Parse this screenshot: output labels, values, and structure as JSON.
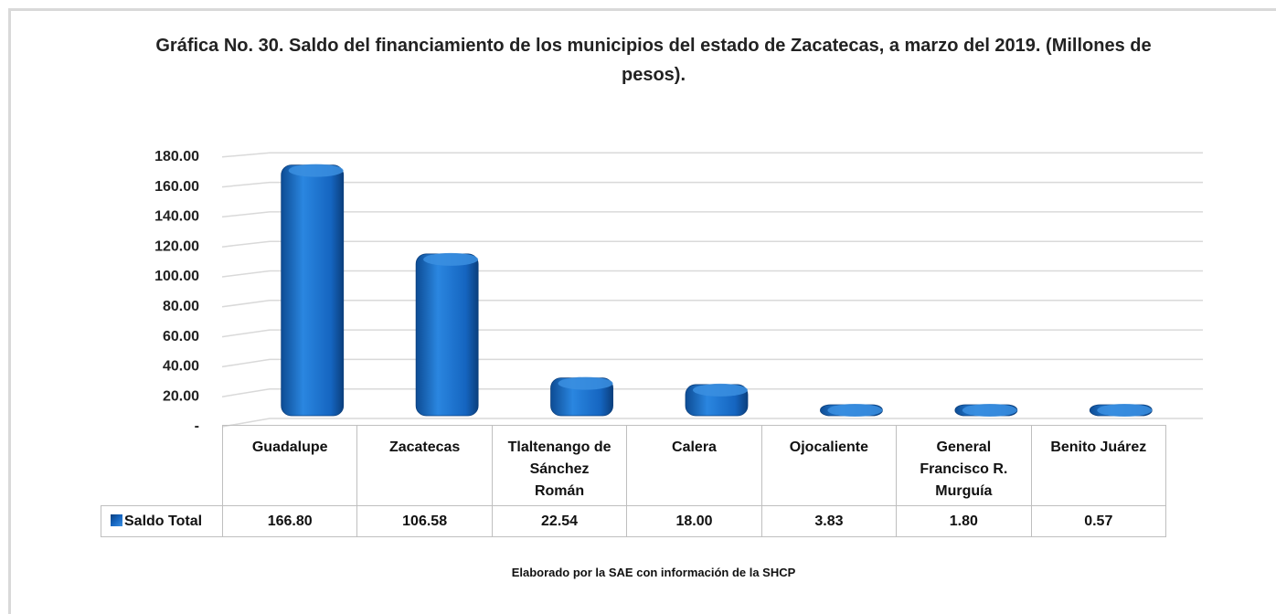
{
  "chart_data": {
    "type": "bar",
    "title": "Gráfica No. 30. Saldo del financiamiento de los municipios del estado de  Zacatecas, a marzo del 2019. (Millones de pesos).",
    "categories": [
      "Guadalupe",
      "Zacatecas",
      "Tlaltenango de Sánchez Román",
      "Calera",
      "Ojocaliente",
      "General Francisco R. Murguía",
      "Benito Juárez"
    ],
    "series": [
      {
        "name": "Saldo Total",
        "color": "#1565c0",
        "values": [
          166.8,
          106.58,
          22.54,
          18,
          3.83,
          1.8,
          0.57
        ],
        "value_labels": [
          "166.80",
          "106.58",
          "22.54",
          "18.00",
          "3.83",
          "1.80",
          "0.57"
        ]
      }
    ],
    "ylim": [
      0,
      200
    ],
    "yticks": [
      {
        "value": 0,
        "label": "-"
      },
      {
        "value": 20,
        "label": "20.00"
      },
      {
        "value": 40,
        "label": "40.00"
      },
      {
        "value": 60,
        "label": "60.00"
      },
      {
        "value": 80,
        "label": "80.00"
      },
      {
        "value": 100,
        "label": "100.00"
      },
      {
        "value": 120,
        "label": "120.00"
      },
      {
        "value": 140,
        "label": "140.00"
      },
      {
        "value": 160,
        "label": "160.00"
      },
      {
        "value": 180,
        "label": "180.00"
      }
    ],
    "grid": true,
    "note": "Elaborado por la SAE con información de  la SHCP"
  }
}
